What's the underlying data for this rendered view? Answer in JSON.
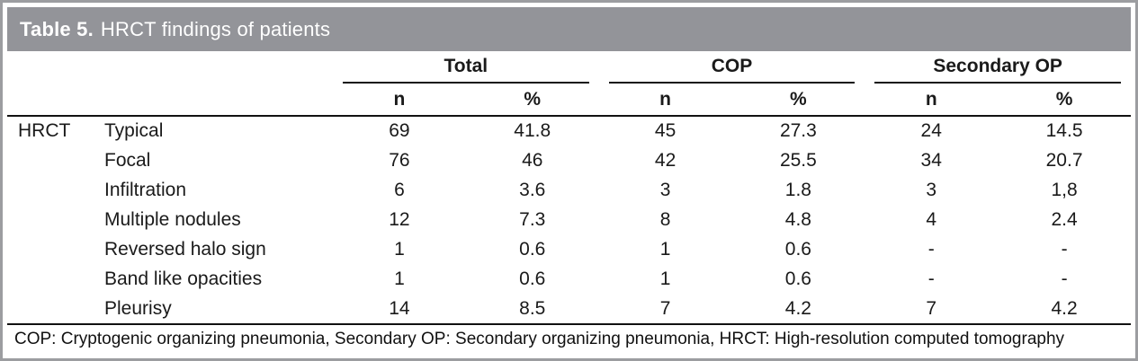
{
  "table": {
    "title_label": "Table 5.",
    "title_caption": "HRCT findings of patients",
    "groups": [
      {
        "label": "Total"
      },
      {
        "label": "COP"
      },
      {
        "label": "Secondary OP"
      }
    ],
    "sub_n": "n",
    "sub_pct": "%",
    "row_header": "HRCT",
    "rows": [
      {
        "finding": "Typical",
        "total_n": "69",
        "total_pct": "41.8",
        "cop_n": "45",
        "cop_pct": "27.3",
        "sop_n": "24",
        "sop_pct": "14.5"
      },
      {
        "finding": "Focal",
        "total_n": "76",
        "total_pct": "46",
        "cop_n": "42",
        "cop_pct": "25.5",
        "sop_n": "34",
        "sop_pct": "20.7"
      },
      {
        "finding": "Infiltration",
        "total_n": "6",
        "total_pct": "3.6",
        "cop_n": "3",
        "cop_pct": "1.8",
        "sop_n": "3",
        "sop_pct": "1,8"
      },
      {
        "finding": "Multiple nodules",
        "total_n": "12",
        "total_pct": "7.3",
        "cop_n": "8",
        "cop_pct": "4.8",
        "sop_n": "4",
        "sop_pct": "2.4"
      },
      {
        "finding": "Reversed halo sign",
        "total_n": "1",
        "total_pct": "0.6",
        "cop_n": "1",
        "cop_pct": "0.6",
        "sop_n": "-",
        "sop_pct": "-"
      },
      {
        "finding": "Band like opacities",
        "total_n": "1",
        "total_pct": "0.6",
        "cop_n": "1",
        "cop_pct": "0.6",
        "sop_n": "-",
        "sop_pct": "-"
      },
      {
        "finding": "Pleurisy",
        "total_n": "14",
        "total_pct": "8.5",
        "cop_n": "7",
        "cop_pct": "4.2",
        "sop_n": "7",
        "sop_pct": "4.2"
      }
    ],
    "footnote": "COP: Cryptogenic organizing pneumonia, Secondary OP: Secondary organizing pneumonia, HRCT: High-resolution computed tomography",
    "colors": {
      "title_bar_bg": "#939499",
      "title_text": "#ffffff",
      "outer_border": "#9c9da0",
      "rule_black": "#111111"
    }
  }
}
